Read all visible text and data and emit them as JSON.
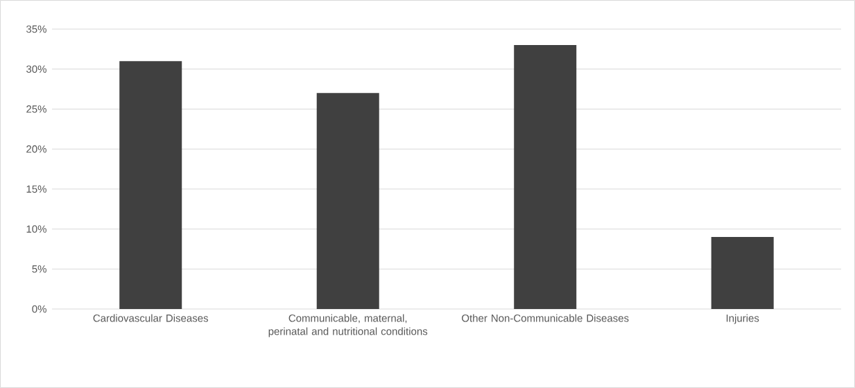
{
  "chart_data": {
    "type": "bar",
    "categories": [
      "Cardiovascular Diseases",
      "Communicable, maternal, perinatal and nutritional conditions",
      "Other Non-Communicable Diseases",
      "Injuries"
    ],
    "values": [
      31,
      27,
      33,
      9
    ],
    "color": "#404040",
    "ylim": [
      0,
      35
    ],
    "yticks": [
      {
        "value": 0,
        "label": "0%"
      },
      {
        "value": 5,
        "label": "5%"
      },
      {
        "value": 10,
        "label": "10%"
      },
      {
        "value": 15,
        "label": "15%"
      },
      {
        "value": 20,
        "label": "20%"
      },
      {
        "value": 25,
        "label": "25%"
      },
      {
        "value": 30,
        "label": "30%"
      },
      {
        "value": 35,
        "label": "35%"
      }
    ],
    "grid": "y"
  }
}
